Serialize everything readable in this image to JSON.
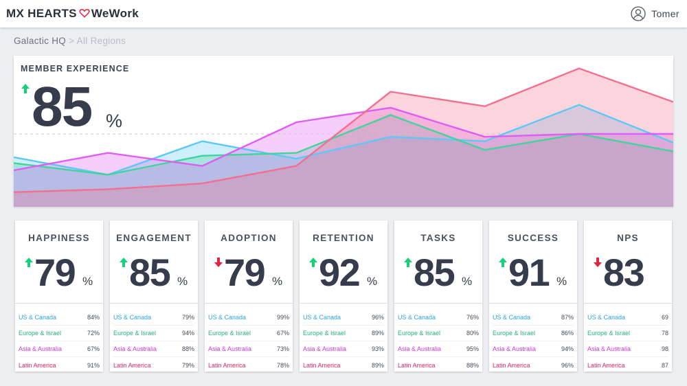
{
  "header": {
    "brand_left": "MX HEARTS",
    "brand_right": "WeWork",
    "user_name": "Tomer"
  },
  "breadcrumb": {
    "current": "Galactic HQ",
    "separator": ">",
    "link": "All Regions"
  },
  "hero": {
    "title": "MEMBER EXPERIENCE",
    "trend": "up",
    "value": "85",
    "unit": "%"
  },
  "colors": {
    "up": "#17d07a",
    "down": "#e8213f",
    "us_canada": "#2aa5e0",
    "europe_israel": "#25b17b",
    "asia_australia": "#c83ad8",
    "latin_america": "#e42262"
  },
  "chart_data": {
    "type": "area",
    "title": "MEMBER EXPERIENCE",
    "x": [
      0,
      1,
      2,
      3,
      4,
      5,
      6,
      7
    ],
    "ylim": [
      0,
      100
    ],
    "reference_line": 50,
    "grid": false,
    "series": [
      {
        "name": "US & Canada",
        "color": "#5cc8f6",
        "values": [
          34,
          22,
          45,
          33,
          48,
          45,
          70,
          44
        ]
      },
      {
        "name": "Europe & Israel",
        "color": "#42d49a",
        "values": [
          30,
          22,
          35,
          37,
          63,
          39,
          50,
          38
        ]
      },
      {
        "name": "Asia & Australia",
        "color": "#e05cf5",
        "values": [
          25,
          37,
          28,
          58,
          68,
          48,
          50,
          50
        ]
      },
      {
        "name": "Latin America",
        "color": "#f2708e",
        "values": [
          10,
          12,
          16,
          28,
          79,
          69,
          95,
          72
        ]
      }
    ]
  },
  "cards": [
    {
      "title": "HAPPINESS",
      "trend": "up",
      "value": "79",
      "unit": "%",
      "rows": [
        {
          "label": "US & Canada",
          "value": "84%"
        },
        {
          "label": "Europe & Israel",
          "value": "72%"
        },
        {
          "label": "Asia & Australia",
          "value": "67%"
        },
        {
          "label": "Latin America",
          "value": "91%"
        }
      ]
    },
    {
      "title": "ENGAGEMENT",
      "trend": "up",
      "value": "85",
      "unit": "%",
      "rows": [
        {
          "label": "US & Canada",
          "value": "79%"
        },
        {
          "label": "Europe & Israel",
          "value": "94%"
        },
        {
          "label": "Asia & Australia",
          "value": "88%"
        },
        {
          "label": "Latin America",
          "value": "79%"
        }
      ]
    },
    {
      "title": "ADOPTION",
      "trend": "down",
      "value": "79",
      "unit": "%",
      "rows": [
        {
          "label": "US & Canada",
          "value": "99%"
        },
        {
          "label": "Europe & Israel",
          "value": "67%"
        },
        {
          "label": "Asia & Australia",
          "value": "73%"
        },
        {
          "label": "Latin America",
          "value": "78%"
        }
      ]
    },
    {
      "title": "RETENTION",
      "trend": "up",
      "value": "92",
      "unit": "%",
      "rows": [
        {
          "label": "US & Canada",
          "value": "96%"
        },
        {
          "label": "Europe & Israel",
          "value": "89%"
        },
        {
          "label": "Asia & Australia",
          "value": "93%"
        },
        {
          "label": "Latin America",
          "value": "89%"
        }
      ]
    },
    {
      "title": "TASKS",
      "trend": "up",
      "value": "85",
      "unit": "%",
      "rows": [
        {
          "label": "US & Canada",
          "value": "76%"
        },
        {
          "label": "Europe & Israel",
          "value": "80%"
        },
        {
          "label": "Asia & Australia",
          "value": "95%"
        },
        {
          "label": "Latin America",
          "value": "88%"
        }
      ]
    },
    {
      "title": "SUCCESS",
      "trend": "up",
      "value": "91",
      "unit": "%",
      "rows": [
        {
          "label": "US & Canada",
          "value": "87%"
        },
        {
          "label": "Europe & Israel",
          "value": "86%"
        },
        {
          "label": "Asia & Australia",
          "value": "94%"
        },
        {
          "label": "Latin America",
          "value": "96%"
        }
      ]
    },
    {
      "title": "NPS",
      "trend": "down",
      "value": "83",
      "unit": "",
      "rows": [
        {
          "label": "US & Canada",
          "value": "69"
        },
        {
          "label": "Europe & Israel",
          "value": "78"
        },
        {
          "label": "Asia & Australia",
          "value": "98"
        },
        {
          "label": "Latin America",
          "value": "87"
        }
      ]
    }
  ]
}
